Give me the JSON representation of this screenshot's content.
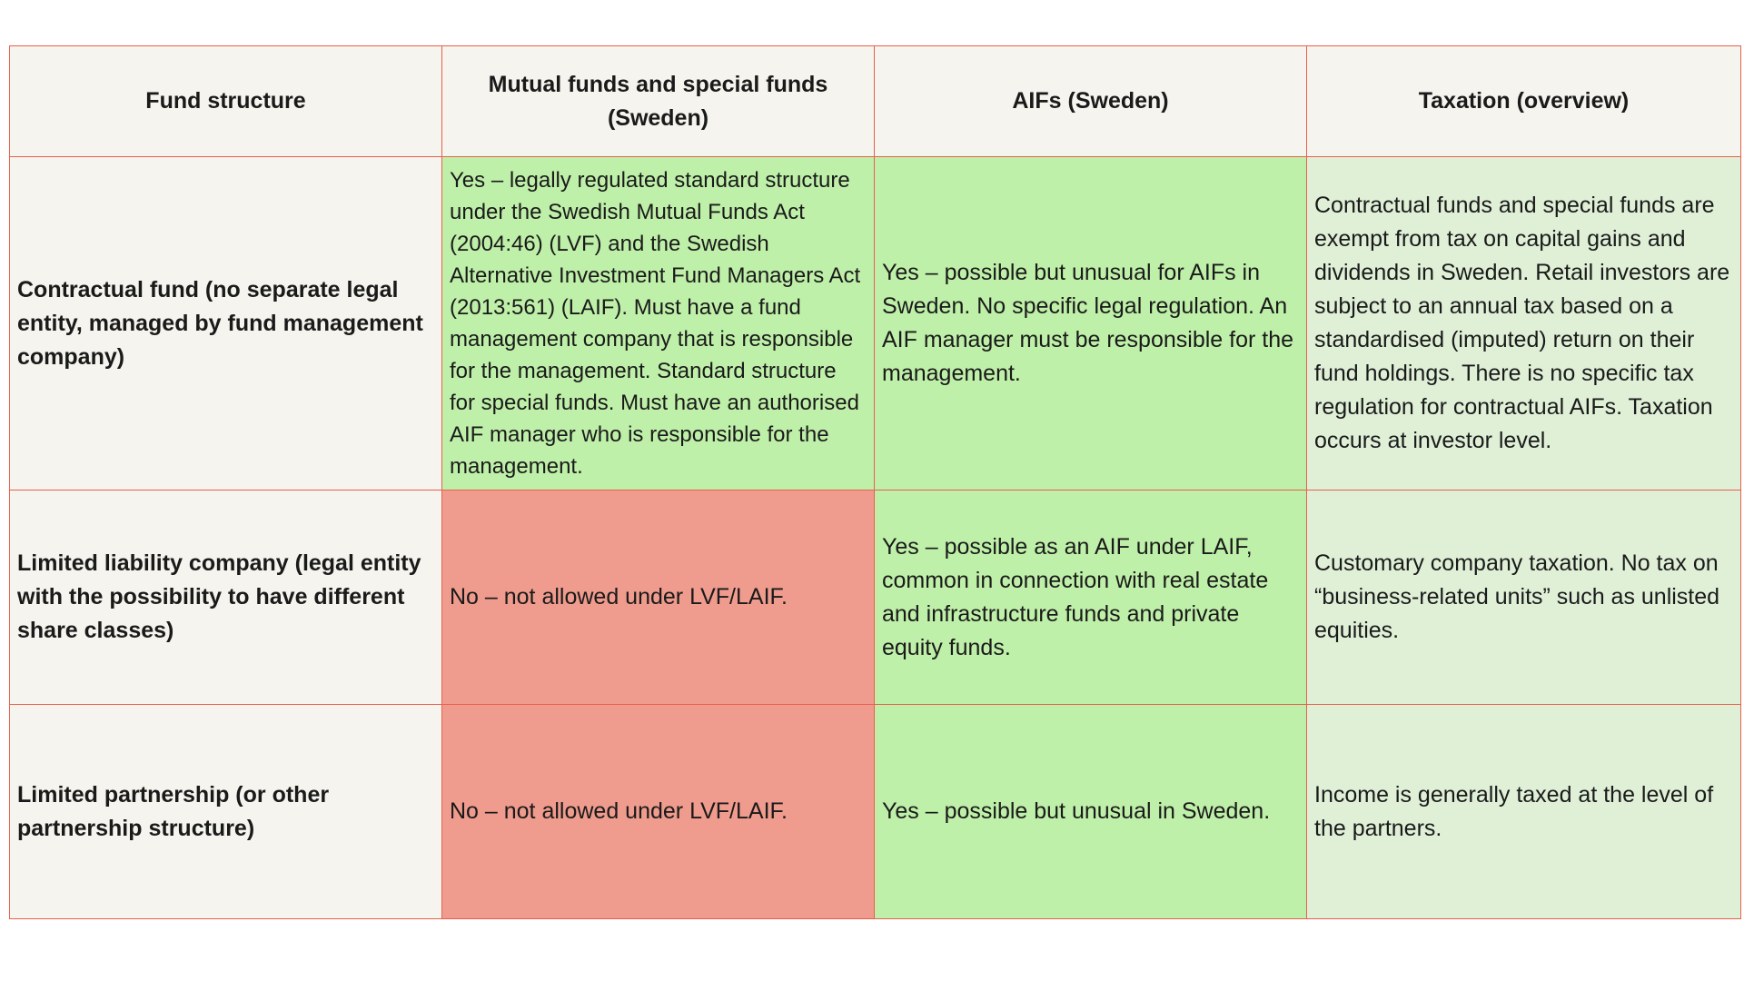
{
  "table": {
    "headers": [
      "Fund structure",
      "Mutual funds and special funds (Sweden)",
      "AIFs (Sweden)",
      "Taxation (overview)"
    ],
    "rows": [
      {
        "structure": "Contractual fund (no separate legal entity, managed by fund management company)",
        "mutual_funds": "Yes – legally regulated standard structure under the Swedish Mutual Funds Act (2004:46) (LVF) and the Swedish Alternative Investment Fund Managers Act (2013:561) (LAIF). Must have a fund management company that is responsible for the management. Standard structure for special funds. Must have an authorised AIF manager who is responsible for the management.",
        "aifs": "Yes – possible but unusual for AIFs in Sweden. No specific legal regulation. An AIF manager must be responsible for the management.",
        "taxation": "Contractual funds and special funds are exempt from tax on capital gains and dividends in Sweden. Retail investors are subject to an annual tax based on a standardised (imputed) return on their fund holdings. There is no specific tax regulation for contractual AIFs. Taxation occurs at investor level."
      },
      {
        "structure": "Limited liability company (legal entity with the possibility to have different share classes)",
        "mutual_funds": "No – not allowed under LVF/LAIF.",
        "aifs": "Yes – possible as an AIF under LAIF, common in connection with real estate and infrastructure funds and private equity funds.",
        "taxation": "Customary company taxation. No tax on “business-related units” such as unlisted equities."
      },
      {
        "structure": "Limited partnership (or other partnership structure)",
        "mutual_funds": "No – not allowed under LVF/LAIF.",
        "aifs": "Yes – possible but unusual in Sweden.",
        "taxation": "Income is generally taxed at the level of the partners."
      }
    ]
  },
  "colors": {
    "border": "#e8604c",
    "header_bg": "#f5f4ee",
    "yes_green": "#bff0a9",
    "tax_green": "#dff0d7",
    "no_red": "#ef9b8d"
  }
}
